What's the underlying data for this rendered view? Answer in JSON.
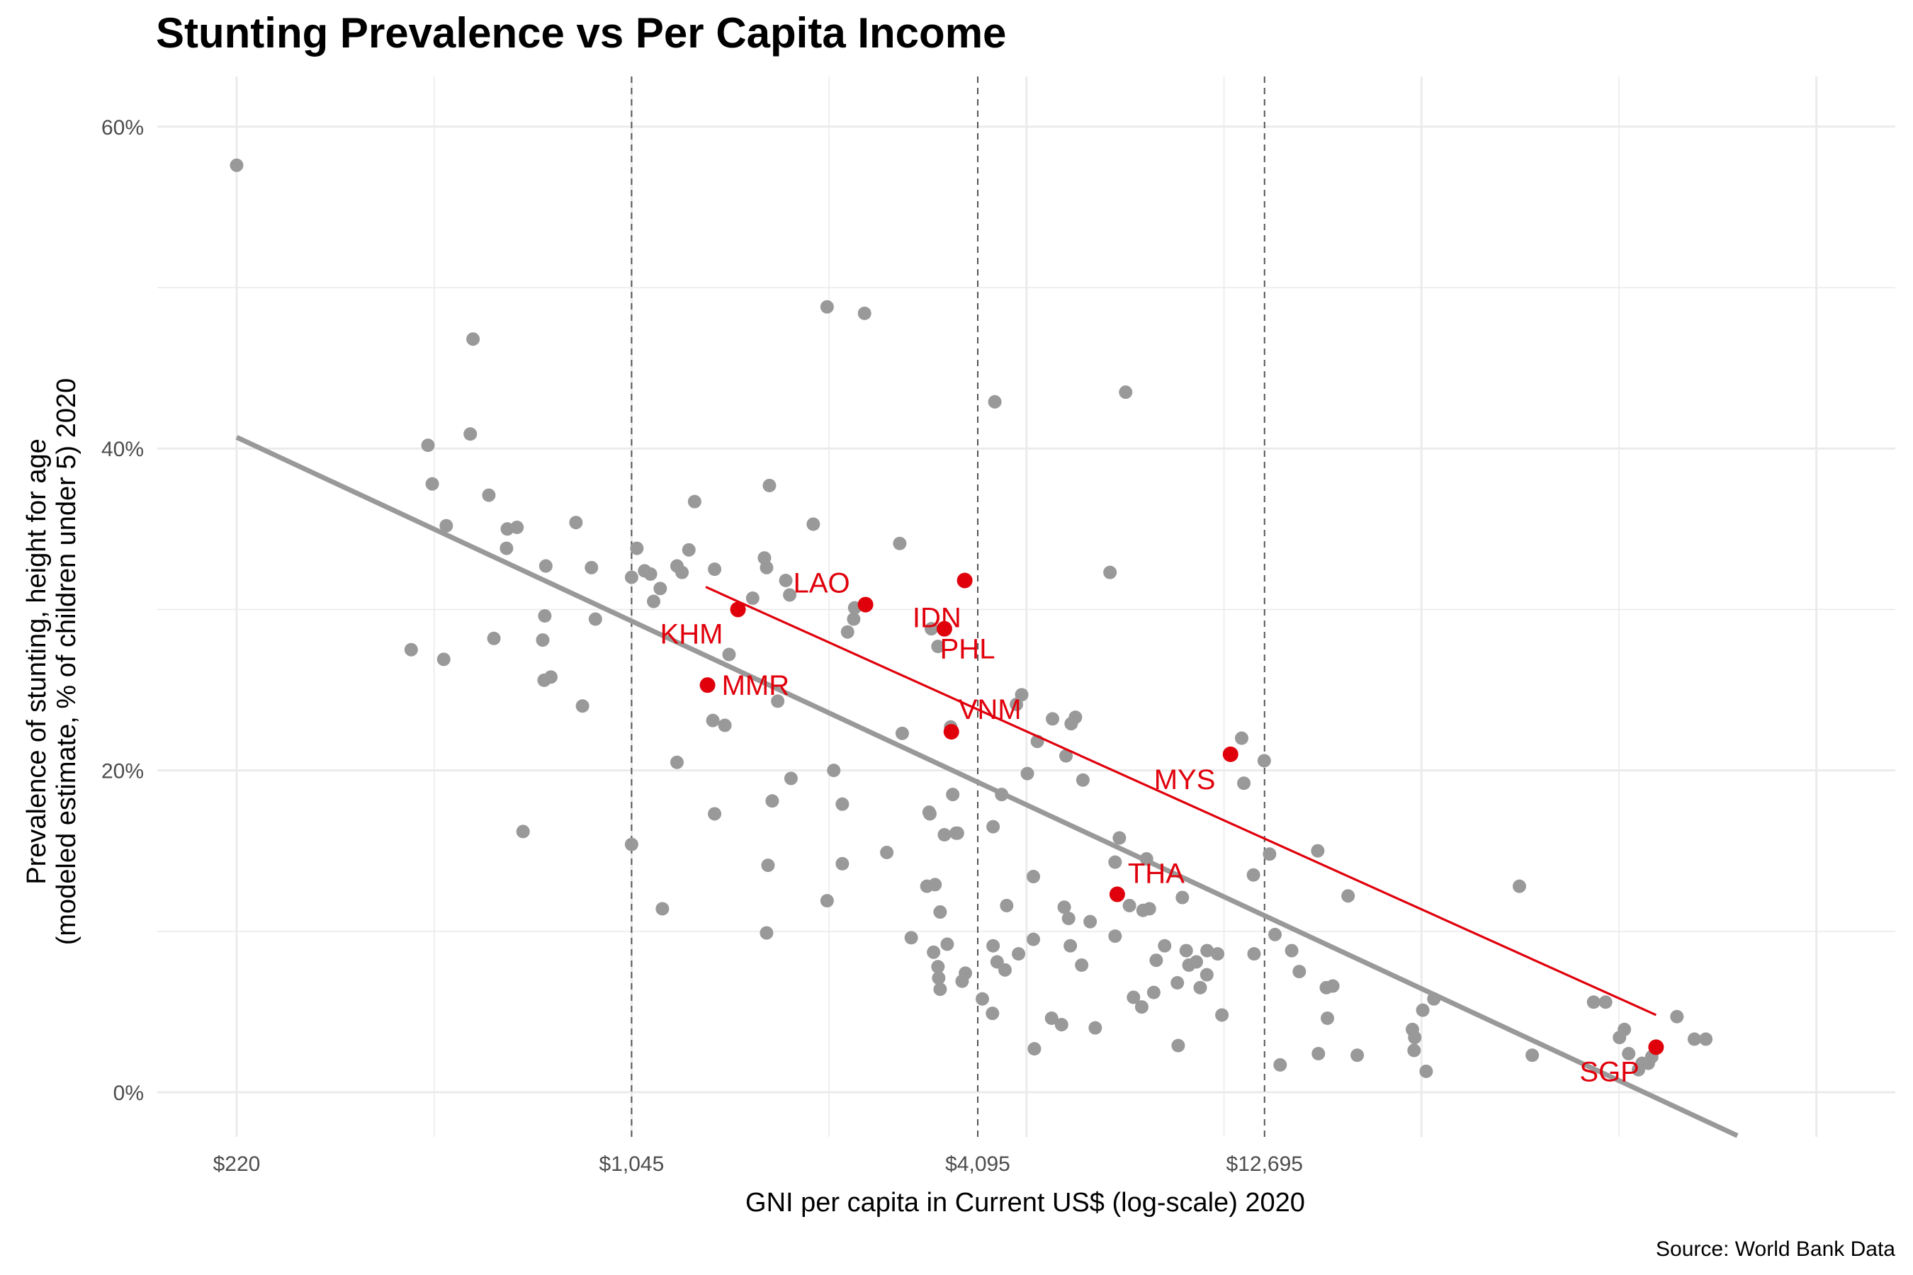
{
  "chart_data": {
    "type": "scatter",
    "title": "Stunting Prevalence vs Per Capita Income",
    "xlabel": "GNI per capita in Current US$ (log-scale) 2020",
    "ylabel": [
      "Prevalence of stunting, height for age",
      "(modeled estimate, % of children under 5) 2020"
    ],
    "caption": "Source: World Bank Data",
    "x_scale": "log",
    "xlim": [
      180,
      100000
    ],
    "ylim": [
      -2.8,
      63
    ],
    "x_ticks": [
      220,
      1045,
      4095,
      12695
    ],
    "x_tick_labels": [
      "$220",
      "$1,045",
      "$4,095",
      "$12,695"
    ],
    "y_ticks": [
      0,
      20,
      40,
      60
    ],
    "y_tick_labels": [
      "0%",
      "20%",
      "40%",
      "60%"
    ],
    "reference_lines_x": [
      1045,
      4095,
      12695
    ],
    "grid": true,
    "colors": {
      "points": "#999999",
      "highlight": "#e0000b",
      "fit_all": "#999999",
      "fit_highlight": "#e0000b"
    },
    "fit_all": {
      "x": [
        220,
        82000
      ],
      "y": [
        40.7,
        -2.7
      ]
    },
    "fit_highlight": {
      "x": [
        1400,
        59500
      ],
      "y": [
        31.4,
        4.8
      ]
    },
    "highlighted": [
      {
        "label": "KHM",
        "x": 1590,
        "y": 30.0
      },
      {
        "label": "MMR",
        "x": 1410,
        "y": 25.3
      },
      {
        "label": "LAO",
        "x": 2630,
        "y": 30.3
      },
      {
        "label": "IDN",
        "x": 3590,
        "y": 28.8
      },
      {
        "label": "PHL",
        "x": 3890,
        "y": 31.8
      },
      {
        "label": "VNM",
        "x": 3690,
        "y": 22.4
      },
      {
        "label": "MYS",
        "x": 11100,
        "y": 21.0
      },
      {
        "label": "THA",
        "x": 7100,
        "y": 12.3
      },
      {
        "label": "SGP",
        "x": 59500,
        "y": 2.8
      }
    ],
    "points": [
      {
        "x": 220,
        "y": 57.6
      },
      {
        "x": 559,
        "y": 46.8
      },
      {
        "x": 468,
        "y": 40.2
      },
      {
        "x": 553,
        "y": 40.9
      },
      {
        "x": 476,
        "y": 37.8
      },
      {
        "x": 503,
        "y": 35.2
      },
      {
        "x": 595,
        "y": 37.1
      },
      {
        "x": 640,
        "y": 35.0
      },
      {
        "x": 638,
        "y": 33.8
      },
      {
        "x": 665,
        "y": 35.1
      },
      {
        "x": 745,
        "y": 32.7
      },
      {
        "x": 839,
        "y": 35.4
      },
      {
        "x": 892,
        "y": 32.6
      },
      {
        "x": 742,
        "y": 29.6
      },
      {
        "x": 736,
        "y": 28.1
      },
      {
        "x": 607,
        "y": 28.2
      },
      {
        "x": 906,
        "y": 29.4
      },
      {
        "x": 438,
        "y": 27.5
      },
      {
        "x": 498,
        "y": 26.9
      },
      {
        "x": 740,
        "y": 25.6
      },
      {
        "x": 760,
        "y": 25.8
      },
      {
        "x": 861,
        "y": 24.0
      },
      {
        "x": 681,
        "y": 16.2
      },
      {
        "x": 1045,
        "y": 15.4
      },
      {
        "x": 1045,
        "y": 32.0
      },
      {
        "x": 1067,
        "y": 33.8
      },
      {
        "x": 1100,
        "y": 32.4
      },
      {
        "x": 1126,
        "y": 32.2
      },
      {
        "x": 1140,
        "y": 30.5
      },
      {
        "x": 1170,
        "y": 31.3
      },
      {
        "x": 1250,
        "y": 32.7
      },
      {
        "x": 1275,
        "y": 32.3
      },
      {
        "x": 1310,
        "y": 33.7
      },
      {
        "x": 1340,
        "y": 36.7
      },
      {
        "x": 1450,
        "y": 32.5
      },
      {
        "x": 1535,
        "y": 27.2
      },
      {
        "x": 1685,
        "y": 30.7
      },
      {
        "x": 1765,
        "y": 33.2
      },
      {
        "x": 1800,
        "y": 37.7
      },
      {
        "x": 1860,
        "y": 24.3
      },
      {
        "x": 1780,
        "y": 32.6
      },
      {
        "x": 1920,
        "y": 31.8
      },
      {
        "x": 1950,
        "y": 30.9
      },
      {
        "x": 2140,
        "y": 35.3
      },
      {
        "x": 2260,
        "y": 48.8
      },
      {
        "x": 2620,
        "y": 48.4
      },
      {
        "x": 2520,
        "y": 30.1
      },
      {
        "x": 2450,
        "y": 28.6
      },
      {
        "x": 2510,
        "y": 29.4
      },
      {
        "x": 1440,
        "y": 23.1
      },
      {
        "x": 1510,
        "y": 22.8
      },
      {
        "x": 1250,
        "y": 20.5
      },
      {
        "x": 1450,
        "y": 17.3
      },
      {
        "x": 1820,
        "y": 18.1
      },
      {
        "x": 1960,
        "y": 19.5
      },
      {
        "x": 2320,
        "y": 20.0
      },
      {
        "x": 2400,
        "y": 17.9
      },
      {
        "x": 2400,
        "y": 14.2
      },
      {
        "x": 2260,
        "y": 11.9
      },
      {
        "x": 1790,
        "y": 14.1
      },
      {
        "x": 1780,
        "y": 9.9
      },
      {
        "x": 1180,
        "y": 11.4
      },
      {
        "x": 3010,
        "y": 34.1
      },
      {
        "x": 3040,
        "y": 22.3
      },
      {
        "x": 2860,
        "y": 14.9
      },
      {
        "x": 3150,
        "y": 9.6
      },
      {
        "x": 3410,
        "y": 28.8
      },
      {
        "x": 3500,
        "y": 27.7
      },
      {
        "x": 3680,
        "y": 22.7
      },
      {
        "x": 3380,
        "y": 17.4
      },
      {
        "x": 3390,
        "y": 17.3
      },
      {
        "x": 3350,
        "y": 12.8
      },
      {
        "x": 3460,
        "y": 12.9
      },
      {
        "x": 3530,
        "y": 11.2
      },
      {
        "x": 3710,
        "y": 18.5
      },
      {
        "x": 3780,
        "y": 16.1
      },
      {
        "x": 3760,
        "y": 16.1
      },
      {
        "x": 3590,
        "y": 16.0
      },
      {
        "x": 3630,
        "y": 9.2
      },
      {
        "x": 3440,
        "y": 8.7
      },
      {
        "x": 3500,
        "y": 7.8
      },
      {
        "x": 3510,
        "y": 7.1
      },
      {
        "x": 3530,
        "y": 6.4
      },
      {
        "x": 3850,
        "y": 6.9
      },
      {
        "x": 3900,
        "y": 7.4
      },
      {
        "x": 4170,
        "y": 5.8
      },
      {
        "x": 4340,
        "y": 4.9
      },
      {
        "x": 4350,
        "y": 9.1
      },
      {
        "x": 4420,
        "y": 8.1
      },
      {
        "x": 4560,
        "y": 7.6
      },
      {
        "x": 4380,
        "y": 42.9
      },
      {
        "x": 4350,
        "y": 16.5
      },
      {
        "x": 4500,
        "y": 18.5
      },
      {
        "x": 4590,
        "y": 11.6
      },
      {
        "x": 4770,
        "y": 24.1
      },
      {
        "x": 4870,
        "y": 24.7
      },
      {
        "x": 4980,
        "y": 19.8
      },
      {
        "x": 5180,
        "y": 21.8
      },
      {
        "x": 5100,
        "y": 13.4
      },
      {
        "x": 5100,
        "y": 9.5
      },
      {
        "x": 4810,
        "y": 8.6
      },
      {
        "x": 5500,
        "y": 23.2
      },
      {
        "x": 5800,
        "y": 20.9
      },
      {
        "x": 5920,
        "y": 22.9
      },
      {
        "x": 6020,
        "y": 23.3
      },
      {
        "x": 6200,
        "y": 19.4
      },
      {
        "x": 5760,
        "y": 11.5
      },
      {
        "x": 5860,
        "y": 10.8
      },
      {
        "x": 5900,
        "y": 9.1
      },
      {
        "x": 6170,
        "y": 7.9
      },
      {
        "x": 5120,
        "y": 2.7
      },
      {
        "x": 5480,
        "y": 4.6
      },
      {
        "x": 5700,
        "y": 4.2
      },
      {
        "x": 6510,
        "y": 4.0
      },
      {
        "x": 6380,
        "y": 10.6
      },
      {
        "x": 6900,
        "y": 32.3
      },
      {
        "x": 7040,
        "y": 9.7
      },
      {
        "x": 7160,
        "y": 15.8
      },
      {
        "x": 7040,
        "y": 14.3
      },
      {
        "x": 7450,
        "y": 11.6
      },
      {
        "x": 7570,
        "y": 5.9
      },
      {
        "x": 7820,
        "y": 5.3
      },
      {
        "x": 7860,
        "y": 11.3
      },
      {
        "x": 8060,
        "y": 11.4
      },
      {
        "x": 7970,
        "y": 14.5
      },
      {
        "x": 7340,
        "y": 43.5
      },
      {
        "x": 8280,
        "y": 8.2
      },
      {
        "x": 8200,
        "y": 6.2
      },
      {
        "x": 8560,
        "y": 9.1
      },
      {
        "x": 9030,
        "y": 2.9
      },
      {
        "x": 9180,
        "y": 12.1
      },
      {
        "x": 9320,
        "y": 8.8
      },
      {
        "x": 9000,
        "y": 6.8
      },
      {
        "x": 9420,
        "y": 7.9
      },
      {
        "x": 9700,
        "y": 8.1
      },
      {
        "x": 9850,
        "y": 6.5
      },
      {
        "x": 10110,
        "y": 7.3
      },
      {
        "x": 10120,
        "y": 8.8
      },
      {
        "x": 10730,
        "y": 4.8
      },
      {
        "x": 10550,
        "y": 8.6
      },
      {
        "x": 11600,
        "y": 22.0
      },
      {
        "x": 11700,
        "y": 19.2
      },
      {
        "x": 12150,
        "y": 13.5
      },
      {
        "x": 12680,
        "y": 20.6
      },
      {
        "x": 12950,
        "y": 14.8
      },
      {
        "x": 13230,
        "y": 9.8
      },
      {
        "x": 12180,
        "y": 8.6
      },
      {
        "x": 13500,
        "y": 1.7
      },
      {
        "x": 14130,
        "y": 8.8
      },
      {
        "x": 14560,
        "y": 7.5
      },
      {
        "x": 15660,
        "y": 15.0
      },
      {
        "x": 15700,
        "y": 2.4
      },
      {
        "x": 16270,
        "y": 4.6
      },
      {
        "x": 16200,
        "y": 6.5
      },
      {
        "x": 16620,
        "y": 6.6
      },
      {
        "x": 17650,
        "y": 12.2
      },
      {
        "x": 18300,
        "y": 2.3
      },
      {
        "x": 22750,
        "y": 3.9
      },
      {
        "x": 22960,
        "y": 3.4
      },
      {
        "x": 22900,
        "y": 2.6
      },
      {
        "x": 23700,
        "y": 5.1
      },
      {
        "x": 24020,
        "y": 1.3
      },
      {
        "x": 24760,
        "y": 5.8
      },
      {
        "x": 34700,
        "y": 12.8
      },
      {
        "x": 36500,
        "y": 2.3
      },
      {
        "x": 46500,
        "y": 5.6
      },
      {
        "x": 48750,
        "y": 5.6
      },
      {
        "x": 51500,
        "y": 3.4
      },
      {
        "x": 52500,
        "y": 3.9
      },
      {
        "x": 53400,
        "y": 2.4
      },
      {
        "x": 55500,
        "y": 1.4
      },
      {
        "x": 56300,
        "y": 1.8
      },
      {
        "x": 57700,
        "y": 1.8
      },
      {
        "x": 58500,
        "y": 2.2
      },
      {
        "x": 64600,
        "y": 4.7
      },
      {
        "x": 69200,
        "y": 3.3
      },
      {
        "x": 72400,
        "y": 3.3
      }
    ]
  }
}
